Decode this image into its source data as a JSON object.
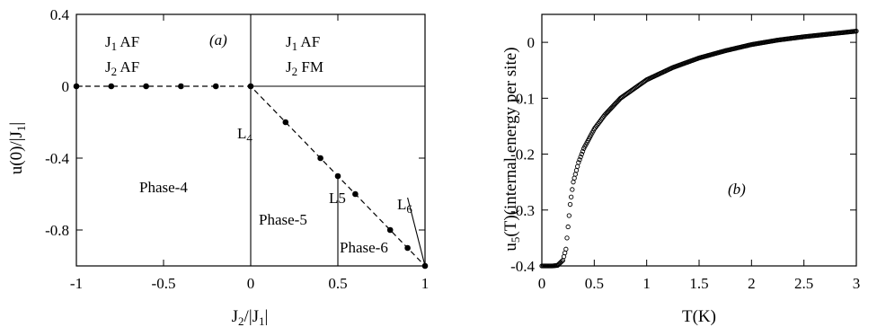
{
  "chart_data": [
    {
      "id": "a",
      "type": "line",
      "panel_label": "(a)",
      "xlabel": "J2/|J1|",
      "ylabel": "u(0)/|J1|",
      "xlim": [
        -1,
        1
      ],
      "ylim": [
        -1,
        0.4
      ],
      "xticks": [
        "-1",
        "-0.5",
        "0",
        "0.5",
        "1"
      ],
      "yticks": [
        "0.4",
        "0",
        "-0.4",
        "-0.8"
      ],
      "series": [
        {
          "style": "dashed-with-markers",
          "points": [
            [
              -1,
              0
            ],
            [
              -0.8,
              0
            ],
            [
              -0.6,
              0
            ],
            [
              -0.4,
              0
            ],
            [
              -0.2,
              0
            ],
            [
              0,
              0
            ],
            [
              0.2,
              -0.2
            ],
            [
              0.4,
              -0.4
            ],
            [
              0.5,
              -0.5
            ],
            [
              0.6,
              -0.6
            ],
            [
              0.8,
              -0.8
            ],
            [
              0.9,
              -0.9
            ],
            [
              1,
              -1
            ]
          ]
        }
      ],
      "lines": [
        {
          "name": "upper horizontal",
          "from": [
            0,
            0
          ],
          "to": [
            1,
            0
          ]
        },
        {
          "name": "L4",
          "from": [
            0,
            0.4
          ],
          "to": [
            0,
            -1
          ]
        },
        {
          "name": "L5",
          "from": [
            0.5,
            -0.5
          ],
          "to": [
            0.5,
            -1
          ]
        },
        {
          "name": "L6",
          "from": [
            0.9,
            -0.62
          ],
          "to": [
            1,
            -1
          ]
        }
      ],
      "regions": {
        "upper_left": [
          "J1 AF",
          "J2 AF"
        ],
        "upper_right": [
          "J1 AF",
          "J2 FM"
        ],
        "phase4": "Phase-4",
        "phase5": "Phase-5",
        "phase6": "Phase-6",
        "L4": "L4",
        "L5": "L5",
        "L6": "L6"
      }
    },
    {
      "id": "b",
      "type": "scatter",
      "panel_label": "(b)",
      "xlabel": "T(K)",
      "ylabel": "u5(T)(internal energy per site)",
      "xlim": [
        0,
        3
      ],
      "ylim": [
        -0.4,
        0.05
      ],
      "xticks": [
        "0",
        "0.5",
        "1",
        "1.5",
        "2",
        "2.5",
        "3"
      ],
      "yticks": [
        "0",
        "-0.1",
        "-0.2",
        "-0.3",
        "-0.4"
      ],
      "series": [
        {
          "marker": "open-circle",
          "points": [
            [
              0,
              -0.4
            ],
            [
              0.1,
              -0.4
            ],
            [
              0.15,
              -0.399
            ],
            [
              0.2,
              -0.39
            ],
            [
              0.23,
              -0.37
            ],
            [
              0.25,
              -0.33
            ],
            [
              0.27,
              -0.29
            ],
            [
              0.3,
              -0.25
            ],
            [
              0.35,
              -0.215
            ],
            [
              0.4,
              -0.19
            ],
            [
              0.5,
              -0.155
            ],
            [
              0.6,
              -0.13
            ],
            [
              0.75,
              -0.1
            ],
            [
              1,
              -0.067
            ],
            [
              1.25,
              -0.045
            ],
            [
              1.5,
              -0.028
            ],
            [
              1.75,
              -0.015
            ],
            [
              2,
              -0.004
            ],
            [
              2.25,
              0.004
            ],
            [
              2.5,
              0.01
            ],
            [
              2.75,
              0.015
            ],
            [
              3,
              0.02
            ]
          ]
        }
      ]
    }
  ]
}
